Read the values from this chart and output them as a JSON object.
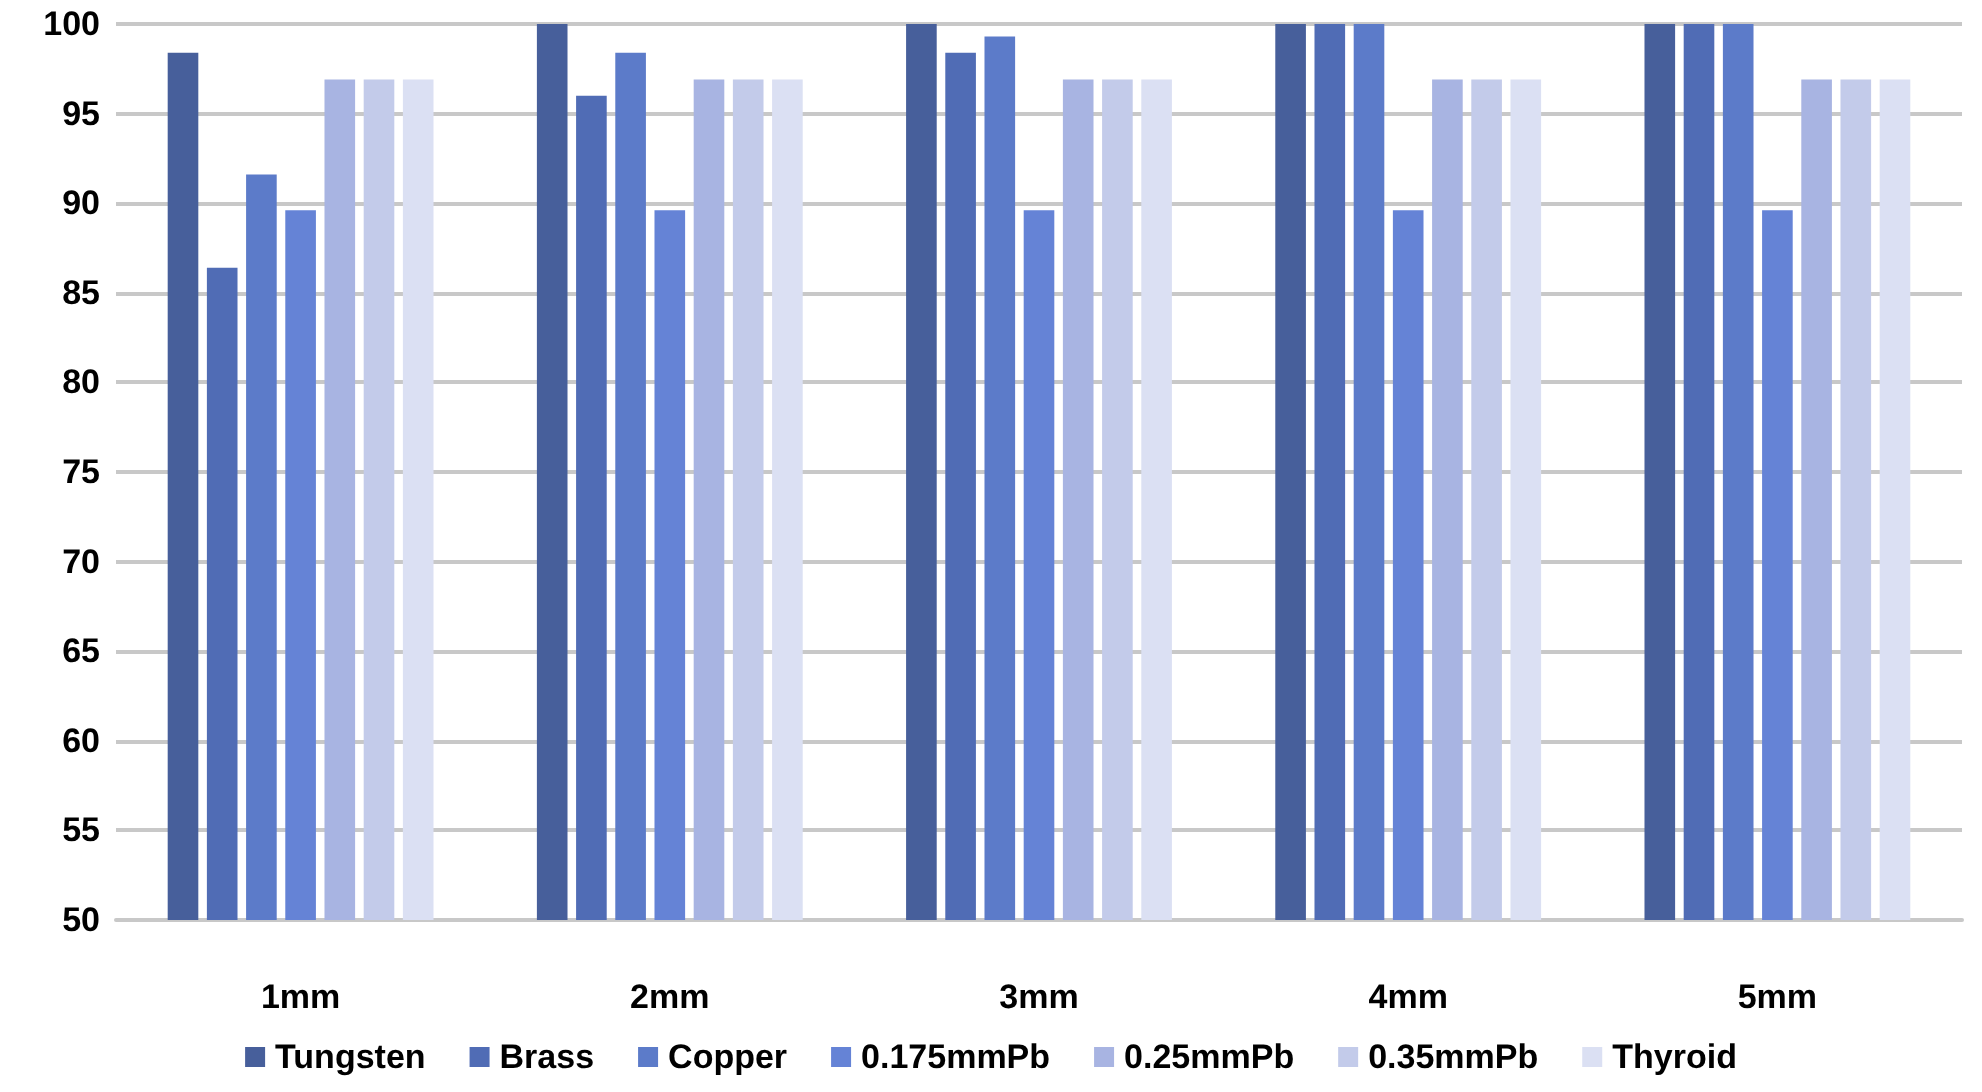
{
  "chart_data": {
    "type": "bar",
    "categories": [
      "1mm",
      "2mm",
      "3mm",
      "4mm",
      "5mm"
    ],
    "series": [
      {
        "name": "Tungsten",
        "color": "#475f9b",
        "values": [
          98.4,
          100,
          100,
          100,
          100
        ]
      },
      {
        "name": "Brass",
        "color": "#506cb5",
        "values": [
          86.4,
          96,
          98.4,
          100,
          100
        ]
      },
      {
        "name": "Copper",
        "color": "#5c7bc9",
        "values": [
          91.6,
          98.4,
          99.3,
          100,
          100
        ]
      },
      {
        "name": "0.175mmPb",
        "color": "#6583d6",
        "values": [
          89.6,
          89.6,
          89.6,
          89.6,
          89.6
        ]
      },
      {
        "name": "0.25mmPb",
        "color": "#a8b4e2",
        "values": [
          96.9,
          96.9,
          96.9,
          96.9,
          96.9
        ]
      },
      {
        "name": "0.35mmPb",
        "color": "#c3cbea",
        "values": [
          96.9,
          96.9,
          96.9,
          96.9,
          96.9
        ]
      },
      {
        "name": "Thyroid",
        "color": "#dbe0f3",
        "values": [
          96.9,
          96.9,
          96.9,
          96.9,
          96.9
        ]
      }
    ],
    "ylim": [
      50,
      100
    ],
    "yticks": [
      50,
      55,
      60,
      65,
      70,
      75,
      80,
      85,
      90,
      95,
      100
    ],
    "grid": "y",
    "legend": "bottom"
  }
}
